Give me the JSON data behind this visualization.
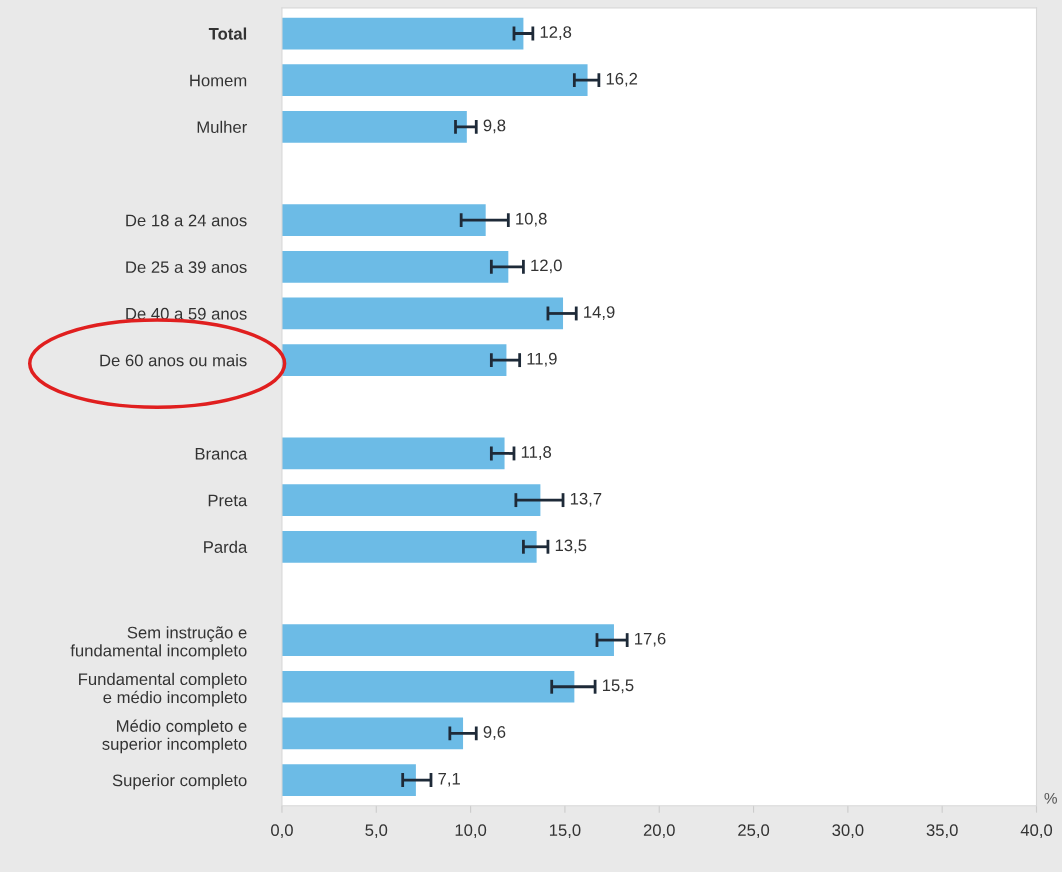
{
  "chart_data": {
    "type": "bar",
    "orientation": "horizontal",
    "categories": [
      "Total",
      "Homem",
      "Mulher",
      null,
      "De 18 a 24 anos",
      "De 25 a 39 anos",
      "De 40 a 59 anos",
      "De 60 anos ou mais",
      null,
      "Branca",
      "Preta",
      "Parda",
      null,
      "Sem instrução e\nfundamental incompleto",
      "Fundamental completo\ne médio incompleto",
      "Médio completo e\nsuperior incompleto",
      "Superior completo"
    ],
    "values": [
      12.8,
      16.2,
      9.8,
      null,
      10.8,
      12.0,
      14.9,
      11.9,
      null,
      11.8,
      13.7,
      13.5,
      null,
      17.6,
      15.5,
      9.6,
      7.1
    ],
    "value_labels": [
      "12,8",
      "16,2",
      "9,8",
      null,
      "10,8",
      "12,0",
      "14,9",
      "11,9",
      null,
      "11,8",
      "13,7",
      "13,5",
      null,
      "17,6",
      "15,5",
      "9,6",
      "7,1"
    ],
    "errors": [
      [
        12.3,
        13.3
      ],
      [
        15.5,
        16.8
      ],
      [
        9.2,
        10.3
      ],
      null,
      [
        9.5,
        12.0
      ],
      [
        11.1,
        12.8
      ],
      [
        14.1,
        15.6
      ],
      [
        11.1,
        12.6
      ],
      null,
      [
        11.1,
        12.3
      ],
      [
        12.4,
        14.9
      ],
      [
        12.8,
        14.1
      ],
      null,
      [
        16.7,
        18.3
      ],
      [
        14.3,
        16.6
      ],
      [
        8.9,
        10.3
      ],
      [
        6.4,
        7.9
      ]
    ],
    "color": "#6cbbe6",
    "xlim": [
      0,
      40
    ],
    "xticks": [
      {
        "value": 0,
        "label": "0,0"
      },
      {
        "value": 5,
        "label": "5,0"
      },
      {
        "value": 10,
        "label": "10,0"
      },
      {
        "value": 15,
        "label": "15,0"
      },
      {
        "value": 20,
        "label": "20,0"
      },
      {
        "value": 25,
        "label": "25,0"
      },
      {
        "value": 30,
        "label": "30,0"
      },
      {
        "value": 35,
        "label": "35,0"
      },
      {
        "value": 40,
        "label": "40,0"
      }
    ],
    "annotations": [
      "%"
    ],
    "grid": false,
    "legend": false
  }
}
